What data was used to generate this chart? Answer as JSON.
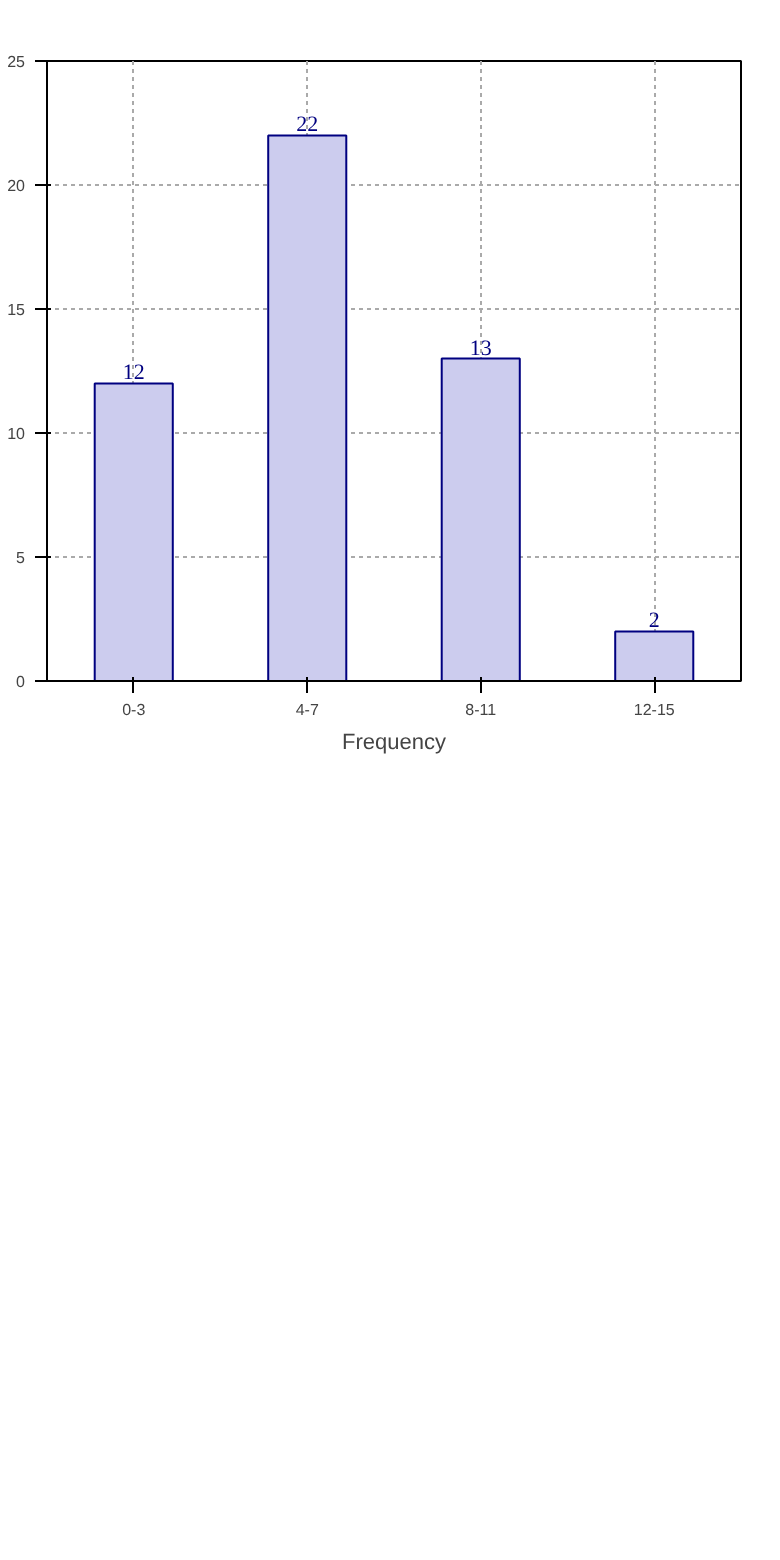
{
  "chart_data": {
    "type": "bar",
    "xlabel": "Frequency",
    "categories": [
      "0-3",
      "4-7",
      "8-11",
      "12-15"
    ],
    "values": [
      12,
      22,
      13,
      2
    ],
    "color": "#ccccee",
    "ylim": [
      0,
      25
    ],
    "yticks": [
      0,
      5,
      10,
      15,
      20,
      25
    ],
    "grid": true,
    "data_labels": true
  }
}
